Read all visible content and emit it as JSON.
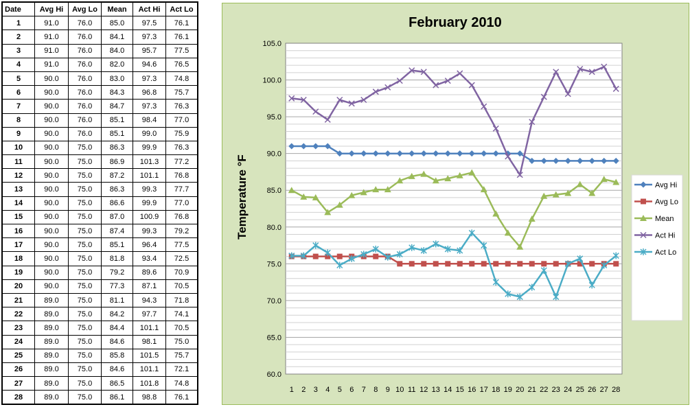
{
  "table": {
    "headers": [
      "Date",
      "Avg Hi",
      "Avg Lo",
      "Mean",
      "Act Hi",
      "Act Lo"
    ],
    "rows": [
      [
        "1",
        "91.0",
        "76.0",
        "85.0",
        "97.5",
        "76.1"
      ],
      [
        "2",
        "91.0",
        "76.0",
        "84.1",
        "97.3",
        "76.1"
      ],
      [
        "3",
        "91.0",
        "76.0",
        "84.0",
        "95.7",
        "77.5"
      ],
      [
        "4",
        "91.0",
        "76.0",
        "82.0",
        "94.6",
        "76.5"
      ],
      [
        "5",
        "90.0",
        "76.0",
        "83.0",
        "97.3",
        "74.8"
      ],
      [
        "6",
        "90.0",
        "76.0",
        "84.3",
        "96.8",
        "75.7"
      ],
      [
        "7",
        "90.0",
        "76.0",
        "84.7",
        "97.3",
        "76.3"
      ],
      [
        "8",
        "90.0",
        "76.0",
        "85.1",
        "98.4",
        "77.0"
      ],
      [
        "9",
        "90.0",
        "76.0",
        "85.1",
        "99.0",
        "75.9"
      ],
      [
        "10",
        "90.0",
        "75.0",
        "86.3",
        "99.9",
        "76.3"
      ],
      [
        "11",
        "90.0",
        "75.0",
        "86.9",
        "101.3",
        "77.2"
      ],
      [
        "12",
        "90.0",
        "75.0",
        "87.2",
        "101.1",
        "76.8"
      ],
      [
        "13",
        "90.0",
        "75.0",
        "86.3",
        "99.3",
        "77.7"
      ],
      [
        "14",
        "90.0",
        "75.0",
        "86.6",
        "99.9",
        "77.0"
      ],
      [
        "15",
        "90.0",
        "75.0",
        "87.0",
        "100.9",
        "76.8"
      ],
      [
        "16",
        "90.0",
        "75.0",
        "87.4",
        "99.3",
        "79.2"
      ],
      [
        "17",
        "90.0",
        "75.0",
        "85.1",
        "96.4",
        "77.5"
      ],
      [
        "18",
        "90.0",
        "75.0",
        "81.8",
        "93.4",
        "72.5"
      ],
      [
        "19",
        "90.0",
        "75.0",
        "79.2",
        "89.6",
        "70.9"
      ],
      [
        "20",
        "90.0",
        "75.0",
        "77.3",
        "87.1",
        "70.5"
      ],
      [
        "21",
        "89.0",
        "75.0",
        "81.1",
        "94.3",
        "71.8"
      ],
      [
        "22",
        "89.0",
        "75.0",
        "84.2",
        "97.7",
        "74.1"
      ],
      [
        "23",
        "89.0",
        "75.0",
        "84.4",
        "101.1",
        "70.5"
      ],
      [
        "24",
        "89.0",
        "75.0",
        "84.6",
        "98.1",
        "75.0"
      ],
      [
        "25",
        "89.0",
        "75.0",
        "85.8",
        "101.5",
        "75.7"
      ],
      [
        "26",
        "89.0",
        "75.0",
        "84.6",
        "101.1",
        "72.1"
      ],
      [
        "27",
        "89.0",
        "75.0",
        "86.5",
        "101.8",
        "74.8"
      ],
      [
        "28",
        "89.0",
        "75.0",
        "86.1",
        "98.8",
        "76.1"
      ]
    ]
  },
  "chart_data": {
    "type": "line",
    "title": "February 2010",
    "xlabel": "",
    "ylabel": "Temperature °F",
    "ylim": [
      60,
      105
    ],
    "yticks": [
      "60.0",
      "65.0",
      "70.0",
      "75.0",
      "80.0",
      "85.0",
      "90.0",
      "95.0",
      "100.0",
      "105.0"
    ],
    "x": [
      1,
      2,
      3,
      4,
      5,
      6,
      7,
      8,
      9,
      10,
      11,
      12,
      13,
      14,
      15,
      16,
      17,
      18,
      19,
      20,
      21,
      22,
      23,
      24,
      25,
      26,
      27,
      28
    ],
    "grid": true,
    "legend": "right",
    "series": [
      {
        "name": "Avg Hi",
        "color": "#4f81bd",
        "marker": "diamond",
        "values": [
          91.0,
          91.0,
          91.0,
          91.0,
          90.0,
          90.0,
          90.0,
          90.0,
          90.0,
          90.0,
          90.0,
          90.0,
          90.0,
          90.0,
          90.0,
          90.0,
          90.0,
          90.0,
          90.0,
          90.0,
          89.0,
          89.0,
          89.0,
          89.0,
          89.0,
          89.0,
          89.0,
          89.0
        ]
      },
      {
        "name": "Avg Lo",
        "color": "#c0504d",
        "marker": "square",
        "values": [
          76.0,
          76.0,
          76.0,
          76.0,
          76.0,
          76.0,
          76.0,
          76.0,
          76.0,
          75.0,
          75.0,
          75.0,
          75.0,
          75.0,
          75.0,
          75.0,
          75.0,
          75.0,
          75.0,
          75.0,
          75.0,
          75.0,
          75.0,
          75.0,
          75.0,
          75.0,
          75.0,
          75.0
        ]
      },
      {
        "name": "Mean",
        "color": "#9bbb59",
        "marker": "triangle",
        "values": [
          85.0,
          84.1,
          84.0,
          82.0,
          83.0,
          84.3,
          84.7,
          85.1,
          85.1,
          86.3,
          86.9,
          87.2,
          86.3,
          86.6,
          87.0,
          87.4,
          85.1,
          81.8,
          79.2,
          77.3,
          81.1,
          84.2,
          84.4,
          84.6,
          85.8,
          84.6,
          86.5,
          86.1
        ]
      },
      {
        "name": "Act Hi",
        "color": "#8064a2",
        "marker": "x",
        "values": [
          97.5,
          97.3,
          95.7,
          94.6,
          97.3,
          96.8,
          97.3,
          98.4,
          99.0,
          99.9,
          101.3,
          101.1,
          99.3,
          99.9,
          100.9,
          99.3,
          96.4,
          93.4,
          89.6,
          87.1,
          94.3,
          97.7,
          101.1,
          98.1,
          101.5,
          101.1,
          101.8,
          98.8
        ]
      },
      {
        "name": "Act Lo",
        "color": "#4bacc6",
        "marker": "star",
        "values": [
          76.1,
          76.1,
          77.5,
          76.5,
          74.8,
          75.7,
          76.3,
          77.0,
          75.9,
          76.3,
          77.2,
          76.8,
          77.7,
          77.0,
          76.8,
          79.2,
          77.5,
          72.5,
          70.9,
          70.5,
          71.8,
          74.1,
          70.5,
          75.0,
          75.7,
          72.1,
          74.8,
          76.1
        ]
      }
    ]
  }
}
